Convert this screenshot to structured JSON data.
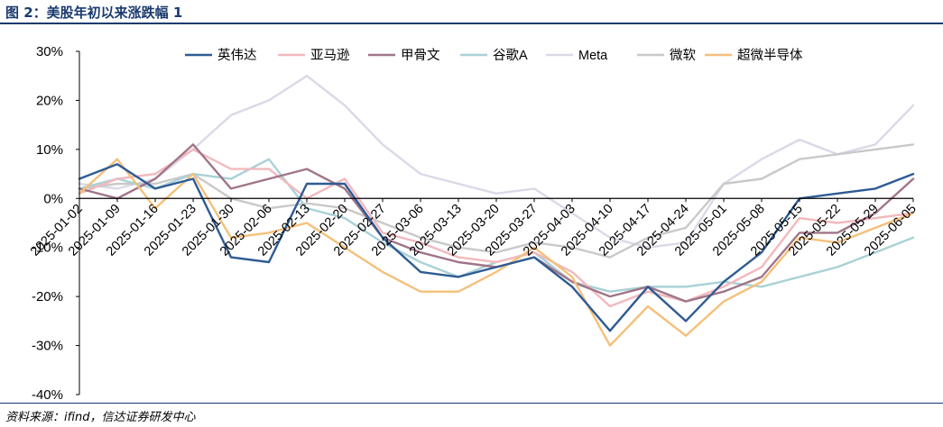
{
  "figure": {
    "title": "图 2：美股年初以来涨跌幅 1",
    "source": "资料来源：ifind，信达证券研发中心"
  },
  "chart_data": {
    "type": "line",
    "title": "",
    "xlabel": "",
    "ylabel": "",
    "ylim": [
      -40,
      30
    ],
    "yticks": [
      "30%",
      "20%",
      "10%",
      "0%",
      "-10%",
      "-20%",
      "-30%",
      "-40%"
    ],
    "ytick_values": [
      30,
      20,
      10,
      0,
      -10,
      -20,
      -30,
      -40
    ],
    "grid": false,
    "legend_position": "top",
    "categories": [
      "2025-01-02",
      "2025-01-09",
      "2025-01-16",
      "2025-01-23",
      "2025-01-30",
      "2025-02-06",
      "2025-02-13",
      "2025-02-20",
      "2025-02-27",
      "2025-03-06",
      "2025-03-13",
      "2025-03-20",
      "2025-03-27",
      "2025-04-03",
      "2025-04-10",
      "2025-04-17",
      "2025-04-24",
      "2025-05-01",
      "2025-05-08",
      "2025-05-15",
      "2025-05-22",
      "2025-05-29",
      "2025-06-05"
    ],
    "series": [
      {
        "name": "英伟达",
        "color": "#2e5b93",
        "values": [
          4,
          7,
          2,
          4,
          -12,
          -13,
          3,
          3,
          -8,
          -15,
          -16,
          -14,
          -12,
          -18,
          -27,
          -18,
          -25,
          -17,
          -11,
          0,
          1,
          2,
          5
        ]
      },
      {
        "name": "亚马逊",
        "color": "#f2b9bd",
        "values": [
          1,
          4,
          5,
          10,
          6,
          6,
          0,
          4,
          -7,
          -9,
          -12,
          -13,
          -11,
          -15,
          -22,
          -19,
          -21,
          -18,
          -14,
          -4,
          -5,
          -4,
          -3
        ]
      },
      {
        "name": "甲骨文",
        "color": "#a07589",
        "values": [
          2,
          0,
          4,
          11,
          2,
          4,
          6,
          2,
          -8,
          -11,
          -13,
          -14,
          -12,
          -17,
          -20,
          -18,
          -21,
          -19,
          -16,
          -7,
          -7,
          -3,
          4
        ]
      },
      {
        "name": "谷歌A",
        "color": "#a9d1d6",
        "values": [
          2,
          4,
          2,
          5,
          4,
          8,
          -2,
          -4,
          -9,
          -13,
          -16,
          -13,
          -11,
          -17,
          -19,
          -18,
          -18,
          -17,
          -18,
          -16,
          -14,
          -11,
          -8
        ]
      },
      {
        "name": "Meta",
        "color": "#d9d9e8",
        "values": [
          3,
          2,
          4,
          10,
          17,
          20,
          25,
          19,
          11,
          5,
          3,
          1,
          2,
          -3,
          -8,
          -10,
          -9,
          3,
          8,
          12,
          9,
          11,
          19
        ]
      },
      {
        "name": "微软",
        "color": "#c9c9c9",
        "values": [
          2,
          3,
          3,
          5,
          0,
          -2,
          -1,
          -2,
          -5,
          -8,
          -10,
          -11,
          -9,
          -10,
          -12,
          -8,
          -6,
          3,
          4,
          8,
          9,
          10,
          11
        ]
      },
      {
        "name": "超微半导体",
        "color": "#f5c07a",
        "values": [
          1,
          8,
          -2,
          5,
          -8,
          -7,
          -5,
          -10,
          -15,
          -19,
          -19,
          -15,
          -10,
          -16,
          -30,
          -22,
          -28,
          -21,
          -17,
          -8,
          -9,
          -6,
          -3
        ]
      }
    ]
  }
}
